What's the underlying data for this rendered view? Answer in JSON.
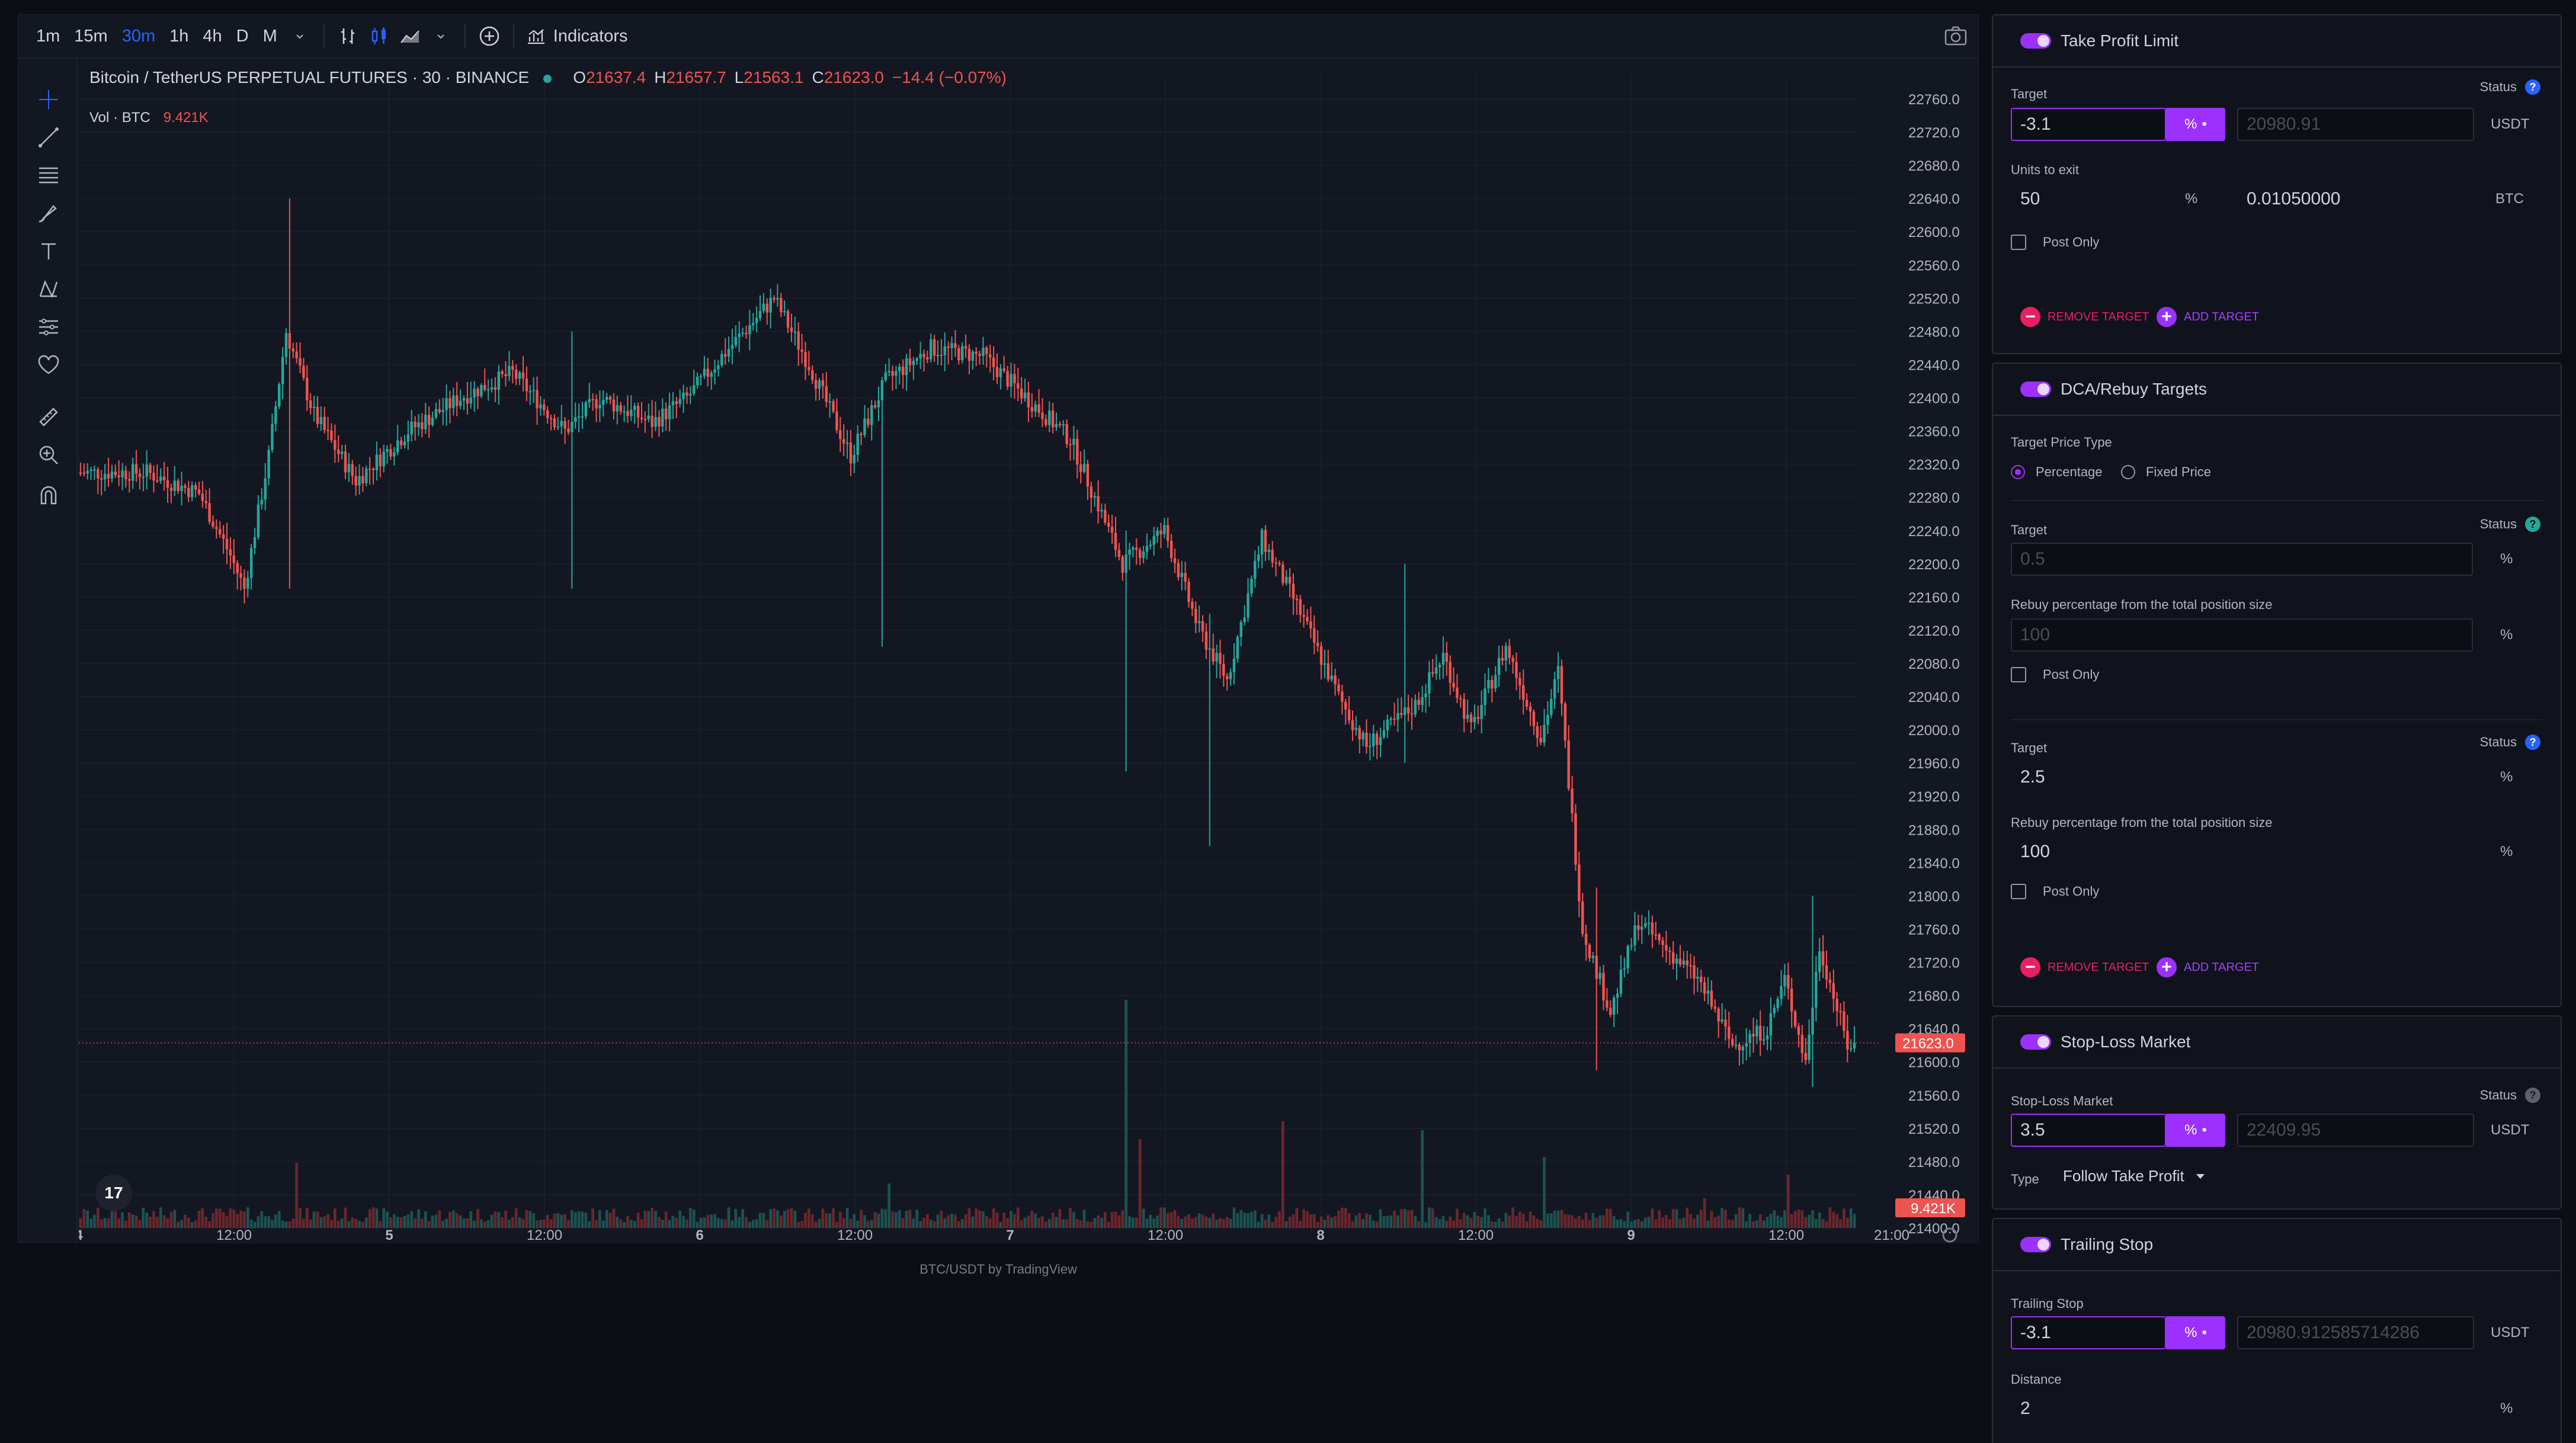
{
  "toolbar": {
    "timeframes": [
      "1m",
      "15m",
      "30m",
      "1h",
      "4h",
      "D",
      "M"
    ],
    "active_timeframe": "30m",
    "indicators_label": "Indicators"
  },
  "legend": {
    "symbol": "Bitcoin / TetherUS PERPETUAL FUTURES · 30 · BINANCE",
    "o_label": "O",
    "o": "21637.4",
    "h_label": "H",
    "h": "21657.7",
    "l_label": "L",
    "l": "21563.1",
    "c_label": "C",
    "c": "21623.0",
    "change": "−14.4 (−0.07%)",
    "vol_label": "Vol · BTC",
    "vol_value": "9.421K"
  },
  "tv_logo": "17",
  "footer": "BTC/USDT by TradingView",
  "colors": {
    "up": "#26a69a",
    "down": "#ef5350",
    "accent": "#9b30ff"
  },
  "chart_data": {
    "type": "candlestick",
    "price_axis_ticks": [
      "22760.0",
      "22720.0",
      "22680.0",
      "22640.0",
      "22600.0",
      "22560.0",
      "22520.0",
      "22480.0",
      "22440.0",
      "22400.0",
      "22360.0",
      "22320.0",
      "22280.0",
      "22240.0",
      "22200.0",
      "22160.0",
      "22120.0",
      "22080.0",
      "22040.0",
      "22000.0",
      "21960.0",
      "21920.0",
      "21880.0",
      "21840.0",
      "21800.0",
      "21760.0",
      "21720.0",
      "21680.0",
      "21640.0",
      "21600.0",
      "21560.0",
      "21520.0",
      "21480.0",
      "21440.0",
      "21400.0"
    ],
    "ylim": [
      21400,
      22760
    ],
    "time_axis_ticks": [
      "4",
      "12:00",
      "5",
      "12:00",
      "6",
      "12:00",
      "7",
      "12:00",
      "8",
      "12:00",
      "9",
      "12:00",
      "21:00"
    ],
    "last_price_label": "21623.0",
    "last_price": 21623.0,
    "last_volume_label": "9.421K",
    "trend_path": [
      [
        0,
        22310
      ],
      [
        20,
        22310
      ],
      [
        35,
        22285
      ],
      [
        44,
        22210
      ],
      [
        48,
        22170
      ],
      [
        55,
        22330
      ],
      [
        60,
        22480
      ],
      [
        68,
        22380
      ],
      [
        80,
        22300
      ],
      [
        95,
        22360
      ],
      [
        110,
        22400
      ],
      [
        125,
        22430
      ],
      [
        140,
        22360
      ],
      [
        150,
        22400
      ],
      [
        165,
        22370
      ],
      [
        175,
        22400
      ],
      [
        185,
        22450
      ],
      [
        200,
        22520
      ],
      [
        210,
        22440
      ],
      [
        222,
        22330
      ],
      [
        232,
        22420
      ],
      [
        245,
        22460
      ],
      [
        260,
        22450
      ],
      [
        275,
        22390
      ],
      [
        285,
        22350
      ],
      [
        292,
        22280
      ],
      [
        300,
        22200
      ],
      [
        312,
        22240
      ],
      [
        322,
        22120
      ],
      [
        330,
        22060
      ],
      [
        340,
        22230
      ],
      [
        350,
        22150
      ],
      [
        362,
        22040
      ],
      [
        370,
        21980
      ],
      [
        384,
        22030
      ],
      [
        392,
        22090
      ],
      [
        400,
        22000
      ],
      [
        410,
        22100
      ],
      [
        420,
        21990
      ],
      [
        425,
        22070
      ],
      [
        432,
        21760
      ],
      [
        440,
        21660
      ],
      [
        448,
        21770
      ],
      [
        455,
        21740
      ],
      [
        465,
        21700
      ],
      [
        475,
        21620
      ],
      [
        485,
        21640
      ],
      [
        490,
        21700
      ],
      [
        496,
        21600
      ],
      [
        500,
        21740
      ],
      [
        508,
        21620
      ]
    ],
    "spikes": [
      [
        60,
        22640,
        22170
      ],
      [
        141,
        22480,
        22170
      ],
      [
        230,
        22420,
        22100
      ],
      [
        300,
        22240,
        21950
      ],
      [
        324,
        22140,
        21860
      ],
      [
        380,
        22200,
        21960
      ],
      [
        435,
        21810,
        21590
      ],
      [
        497,
        21800,
        21570
      ]
    ],
    "volume_spikes": [
      [
        62,
        0.22
      ],
      [
        232,
        0.15
      ],
      [
        300,
        0.77
      ],
      [
        304,
        0.3
      ],
      [
        345,
        0.36
      ],
      [
        385,
        0.33
      ],
      [
        420,
        0.24
      ],
      [
        466,
        0.1
      ],
      [
        490,
        0.18
      ]
    ]
  },
  "panel": {
    "take_profit": {
      "title": "Take Profit Limit",
      "target_label": "Target",
      "status_label": "Status",
      "target_value": "-3.1",
      "pct_btn": "%",
      "price_value": "20980.91",
      "price_unit": "USDT",
      "units_label": "Units to exit",
      "units_value": "50",
      "units_pct": "%",
      "btc_value": "0.01050000",
      "btc_unit": "BTC",
      "post_only": "Post Only",
      "remove_label": "REMOVE TARGET",
      "add_label": "ADD TARGET"
    },
    "dca": {
      "title": "DCA/Rebuy Targets",
      "price_type_label": "Target Price Type",
      "opt_percentage": "Percentage",
      "opt_fixed": "Fixed Price",
      "t1_label": "Target",
      "status_label": "Status",
      "t1_value": "0.5",
      "t1_unit": "%",
      "rebuy_label": "Rebuy percentage from the total position size",
      "r1_value": "100",
      "r1_unit": "%",
      "post_only": "Post Only",
      "t2_label": "Target",
      "t2_value": "2.5",
      "t2_unit": "%",
      "r2_value": "100",
      "r2_unit": "%",
      "remove_label": "REMOVE TARGET",
      "add_label": "ADD TARGET"
    },
    "stop_loss": {
      "title": "Stop-Loss Market",
      "label": "Stop-Loss Market",
      "status_label": "Status",
      "value": "3.5",
      "pct_btn": "%",
      "price_value": "22409.95",
      "price_unit": "USDT",
      "type_label": "Type",
      "type_value": "Follow Take Profit"
    },
    "trailing": {
      "title": "Trailing Stop",
      "label": "Trailing Stop",
      "value": "-3.1",
      "pct_btn": "%",
      "price_value": "20980.912585714286",
      "price_unit": "USDT",
      "distance_label": "Distance",
      "distance_value": "2",
      "distance_unit": "%"
    }
  }
}
